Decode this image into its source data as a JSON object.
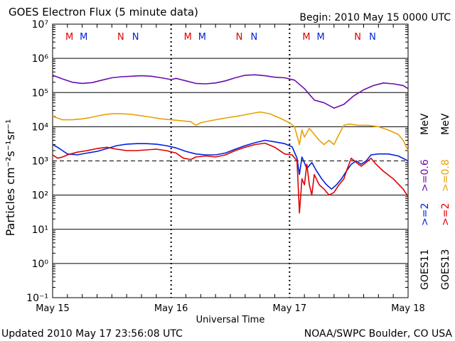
{
  "header": {
    "title": "GOES Electron Flux (5 minute data)",
    "begin": "Begin: 2010 May 15 0000 UTC"
  },
  "footer": {
    "updated": "Updated 2010 May 17 23:56:08 UTC",
    "source": "NOAA/SWPC Boulder, CO USA"
  },
  "colors": {
    "purple": "#6a0dad",
    "orange": "#e8a000",
    "blue": "#0022dd",
    "red": "#dd0000",
    "axis": "#000000"
  },
  "chart_data": {
    "type": "line",
    "xlabel": "Universal Time",
    "ylabel": "Particles cm⁻²s⁻¹sr⁻¹",
    "x_ticks": [
      "May 15",
      "May 16",
      "May 17",
      "May 18"
    ],
    "xlim": [
      0,
      72
    ],
    "ylim_exponents": [
      -1,
      7
    ],
    "y_tick_labels": [
      "10⁻¹",
      "10⁰",
      "10¹",
      "10²",
      "10³",
      "10⁴",
      "10⁵",
      "10⁶",
      "10⁷"
    ],
    "y_scale": "log",
    "threshold_line": 1000,
    "grid": true,
    "markers": [
      {
        "label": "M",
        "color": "#dd0000",
        "hour": 3.4
      },
      {
        "label": "M",
        "color": "#0022dd",
        "hour": 6.3
      },
      {
        "label": "N",
        "color": "#dd0000",
        "hour": 13.8
      },
      {
        "label": "N",
        "color": "#0022dd",
        "hour": 16.8
      },
      {
        "label": "M",
        "color": "#dd0000",
        "hour": 27.4
      },
      {
        "label": "M",
        "color": "#0022dd",
        "hour": 30.3
      },
      {
        "label": "N",
        "color": "#dd0000",
        "hour": 37.8
      },
      {
        "label": "N",
        "color": "#0022dd",
        "hour": 40.8
      },
      {
        "label": "M",
        "color": "#dd0000",
        "hour": 51.4
      },
      {
        "label": "M",
        "color": "#0022dd",
        "hour": 54.3
      },
      {
        "label": "N",
        "color": "#dd0000",
        "hour": 61.8
      },
      {
        "label": "N",
        "color": "#0022dd",
        "hour": 64.8
      }
    ],
    "legend": {
      "goes11": "GOES11",
      "goes13": "GOES13",
      "goes11_ge2": ">=2",
      "goes11_ge06": ">=0.6",
      "goes13_ge2": ">=2",
      "goes13_ge08": ">=0.8",
      "unit": "MeV"
    },
    "series": [
      {
        "name": ">=0.6 MeV",
        "color": "#6a0dad",
        "points": [
          [
            0,
            320000
          ],
          [
            2,
            250000
          ],
          [
            4,
            200000
          ],
          [
            6,
            185000
          ],
          [
            8,
            195000
          ],
          [
            10,
            230000
          ],
          [
            12,
            270000
          ],
          [
            14,
            290000
          ],
          [
            16,
            300000
          ],
          [
            18,
            310000
          ],
          [
            20,
            300000
          ],
          [
            22,
            270000
          ],
          [
            24,
            240000
          ],
          [
            25,
            260000
          ],
          [
            27,
            220000
          ],
          [
            29,
            185000
          ],
          [
            31,
            180000
          ],
          [
            33,
            190000
          ],
          [
            35,
            220000
          ],
          [
            37,
            270000
          ],
          [
            39,
            320000
          ],
          [
            41,
            330000
          ],
          [
            43,
            310000
          ],
          [
            45,
            280000
          ],
          [
            47,
            270000
          ],
          [
            49,
            230000
          ],
          [
            49.5,
            200000
          ],
          [
            51,
            130000
          ],
          [
            53,
            60000
          ],
          [
            55,
            50000
          ],
          [
            57,
            35000
          ],
          [
            59,
            45000
          ],
          [
            61,
            80000
          ],
          [
            63,
            120000
          ],
          [
            65,
            160000
          ],
          [
            67,
            190000
          ],
          [
            69,
            180000
          ],
          [
            71,
            160000
          ],
          [
            72,
            130000
          ]
        ]
      },
      {
        "name": ">=0.8 MeV",
        "color": "#e8a000",
        "points": [
          [
            0,
            20000
          ],
          [
            2,
            16000
          ],
          [
            4,
            16000
          ],
          [
            6,
            17000
          ],
          [
            8,
            19000
          ],
          [
            10,
            22000
          ],
          [
            12,
            24000
          ],
          [
            14,
            24000
          ],
          [
            16,
            23000
          ],
          [
            18,
            21000
          ],
          [
            20,
            19000
          ],
          [
            22,
            17000
          ],
          [
            24,
            16000
          ],
          [
            26,
            15000
          ],
          [
            28,
            14000
          ],
          [
            29,
            11000
          ],
          [
            30,
            13000
          ],
          [
            32,
            15000
          ],
          [
            34,
            17000
          ],
          [
            36,
            19000
          ],
          [
            38,
            21000
          ],
          [
            40,
            24000
          ],
          [
            42,
            27000
          ],
          [
            44,
            24000
          ],
          [
            46,
            18000
          ],
          [
            48,
            13000
          ],
          [
            49,
            10000
          ],
          [
            50,
            3000
          ],
          [
            50.5,
            8000
          ],
          [
            51,
            5000
          ],
          [
            52,
            9000
          ],
          [
            53,
            6000
          ],
          [
            54,
            4000
          ],
          [
            55,
            3000
          ],
          [
            56,
            4000
          ],
          [
            57,
            3000
          ],
          [
            58,
            6000
          ],
          [
            59,
            11000
          ],
          [
            60,
            12000
          ],
          [
            62,
            11000
          ],
          [
            64,
            11000
          ],
          [
            66,
            10000
          ],
          [
            68,
            8000
          ],
          [
            70,
            6000
          ],
          [
            71,
            4000
          ],
          [
            72,
            2000
          ]
        ]
      },
      {
        "name": ">=2 MeV",
        "color": "#0022dd",
        "points": [
          [
            0,
            3000
          ],
          [
            1,
            2500
          ],
          [
            2,
            2000
          ],
          [
            3,
            1600
          ],
          [
            5,
            1500
          ],
          [
            7,
            1700
          ],
          [
            9,
            1900
          ],
          [
            11,
            2300
          ],
          [
            13,
            2800
          ],
          [
            15,
            3100
          ],
          [
            17,
            3200
          ],
          [
            19,
            3200
          ],
          [
            21,
            3100
          ],
          [
            23,
            2800
          ],
          [
            25,
            2400
          ],
          [
            27,
            1900
          ],
          [
            29,
            1600
          ],
          [
            31,
            1500
          ],
          [
            33,
            1500
          ],
          [
            35,
            1700
          ],
          [
            37,
            2200
          ],
          [
            39,
            2800
          ],
          [
            41,
            3400
          ],
          [
            43,
            4000
          ],
          [
            45,
            3600
          ],
          [
            47,
            3200
          ],
          [
            48.5,
            2600
          ],
          [
            49.5,
            1200
          ],
          [
            50,
            400
          ],
          [
            50.5,
            1300
          ],
          [
            51.5,
            600
          ],
          [
            52.5,
            900
          ],
          [
            53.5,
            500
          ],
          [
            54.5,
            300
          ],
          [
            55.5,
            200
          ],
          [
            56.5,
            150
          ],
          [
            57.5,
            200
          ],
          [
            58.5,
            300
          ],
          [
            59.5,
            500
          ],
          [
            60.5,
            800
          ],
          [
            61.5,
            1000
          ],
          [
            62.5,
            800
          ],
          [
            63.5,
            1000
          ],
          [
            64.5,
            1500
          ],
          [
            66,
            1600
          ],
          [
            68,
            1600
          ],
          [
            70,
            1400
          ],
          [
            72,
            1000
          ]
        ]
      },
      {
        "name": ">=2 MeV",
        "color": "#dd0000",
        "points": [
          [
            0,
            1500
          ],
          [
            1,
            1200
          ],
          [
            2,
            1300
          ],
          [
            3,
            1500
          ],
          [
            5,
            1800
          ],
          [
            7,
            2000
          ],
          [
            9,
            2300
          ],
          [
            11,
            2500
          ],
          [
            13,
            2200
          ],
          [
            15,
            2000
          ],
          [
            17,
            2000
          ],
          [
            19,
            2100
          ],
          [
            21,
            2200
          ],
          [
            23,
            2000
          ],
          [
            25,
            1700
          ],
          [
            26.5,
            1200
          ],
          [
            28,
            1100
          ],
          [
            29,
            1300
          ],
          [
            31,
            1400
          ],
          [
            33,
            1300
          ],
          [
            35,
            1500
          ],
          [
            37,
            2000
          ],
          [
            39,
            2500
          ],
          [
            41,
            3000
          ],
          [
            43,
            3300
          ],
          [
            45,
            2500
          ],
          [
            47,
            1600
          ],
          [
            48.5,
            1500
          ],
          [
            49.5,
            1000
          ],
          [
            50,
            30
          ],
          [
            50.5,
            300
          ],
          [
            51,
            200
          ],
          [
            51.5,
            800
          ],
          [
            52,
            200
          ],
          [
            52.5,
            100
          ],
          [
            53,
            400
          ],
          [
            54,
            200
          ],
          [
            55,
            150
          ],
          [
            56,
            100
          ],
          [
            57,
            120
          ],
          [
            58,
            200
          ],
          [
            59,
            300
          ],
          [
            59.5,
            500
          ],
          [
            60.5,
            1200
          ],
          [
            61.5,
            900
          ],
          [
            62.5,
            700
          ],
          [
            63.5,
            900
          ],
          [
            64.5,
            1200
          ],
          [
            65.5,
            800
          ],
          [
            67,
            500
          ],
          [
            69,
            300
          ],
          [
            71,
            150
          ],
          [
            72,
            90
          ]
        ]
      }
    ]
  }
}
